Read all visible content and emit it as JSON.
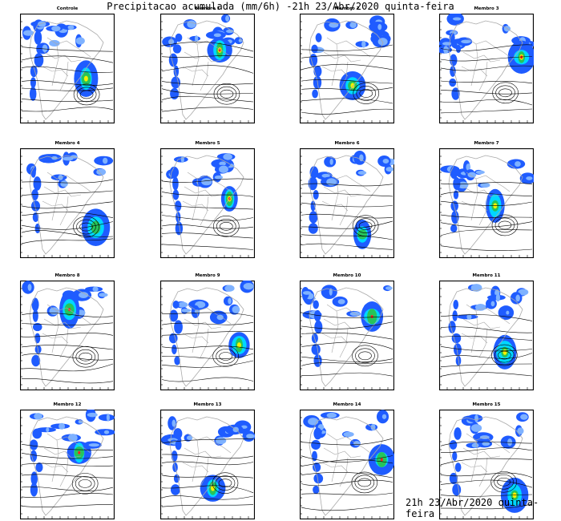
{
  "title": "Precipitacao acumulada (mm/6h) -21h 23/Abr/2020 quinta-feira",
  "footer": "21h 23/Abr/2020 quinta-feira",
  "panels": [
    {
      "label": "Controle"
    },
    {
      "label": "Membro 1"
    },
    {
      "label": "Membro 2"
    },
    {
      "label": "Membro 3"
    },
    {
      "label": "Membro 4"
    },
    {
      "label": "Membro 5"
    },
    {
      "label": "Membro 6"
    },
    {
      "label": "Membro 7"
    },
    {
      "label": "Membro 8"
    },
    {
      "label": "Membro 9"
    },
    {
      "label": "Membro 10"
    },
    {
      "label": "Membro 11"
    },
    {
      "label": "Membro 12"
    },
    {
      "label": "Membro 13"
    },
    {
      "label": "Membro 14"
    },
    {
      "label": "Membro 15"
    }
  ],
  "colors": {
    "light_blue": "#7fb2ff",
    "blue": "#1f5cff",
    "cyan": "#00d7ff",
    "green": "#27c45a",
    "yellow": "#f4f000",
    "orange": "#ff9c00",
    "red": "#ff2020",
    "contour": "#000000",
    "border": "#a9a9a9"
  }
}
